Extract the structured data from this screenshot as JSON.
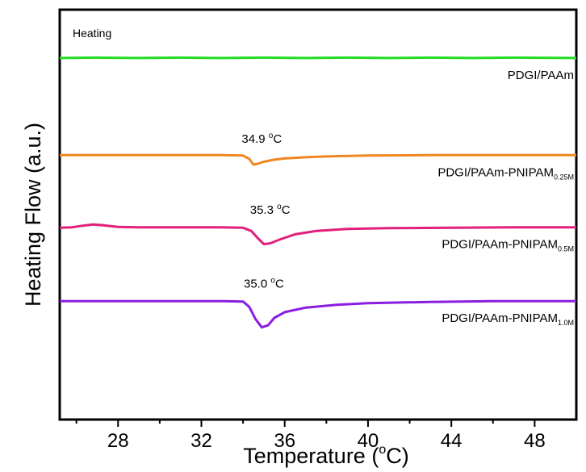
{
  "chart_data": {
    "type": "line",
    "annotation": "Heating",
    "xlabel": {
      "prefix": "Temperature (",
      "sup": "o",
      "suffix": "C)"
    },
    "ylabel": "Heating Flow (a.u.)",
    "xlim": [
      25.2,
      50.0
    ],
    "ylim": [
      0,
      1
    ],
    "grid": false,
    "yticks": false,
    "x_ticks_major": [
      28,
      32,
      36,
      40,
      44,
      48
    ],
    "x_ticks_minor": [
      26,
      30,
      34,
      38,
      42,
      46
    ],
    "x_tick_labels": [
      "28",
      "32",
      "36",
      "40",
      "44",
      "48"
    ],
    "series": [
      {
        "name": "PDGI/PAAm",
        "label": {
          "main": "PDGI/PAAm",
          "sub": ""
        },
        "color": "#22dd22",
        "points": [
          [
            25.2,
            0.882
          ],
          [
            27.0,
            0.883
          ],
          [
            29.0,
            0.882
          ],
          [
            31.0,
            0.883
          ],
          [
            33.0,
            0.882
          ],
          [
            35.0,
            0.883
          ],
          [
            37.0,
            0.882
          ],
          [
            39.0,
            0.883
          ],
          [
            41.0,
            0.882
          ],
          [
            43.0,
            0.883
          ],
          [
            45.0,
            0.882
          ],
          [
            47.0,
            0.883
          ],
          [
            50.0,
            0.882
          ]
        ],
        "peak_label": null
      },
      {
        "name": "PDGI/PAAm-PNIPAM0.25M",
        "label": {
          "main": "PDGI/PAAm-PNIPAM",
          "sub": "0.25M"
        },
        "color": "#ee8820",
        "points": [
          [
            25.2,
            0.645
          ],
          [
            28.0,
            0.645
          ],
          [
            31.0,
            0.645
          ],
          [
            33.0,
            0.645
          ],
          [
            34.0,
            0.644
          ],
          [
            34.3,
            0.636
          ],
          [
            34.5,
            0.622
          ],
          [
            34.7,
            0.624
          ],
          [
            35.0,
            0.629
          ],
          [
            35.5,
            0.634
          ],
          [
            36.0,
            0.637
          ],
          [
            37.0,
            0.64
          ],
          [
            38.0,
            0.642
          ],
          [
            40.0,
            0.644
          ],
          [
            43.0,
            0.645
          ],
          [
            46.0,
            0.645
          ],
          [
            50.0,
            0.645
          ]
        ],
        "peak_label": {
          "value": "34.9 ",
          "sup": "o",
          "unit": "C",
          "x": 34.9,
          "y": 0.675
        }
      },
      {
        "name": "PDGI/PAAm-PNIPAM0.5M",
        "label": {
          "main": "PDGI/PAAm-PNIPAM",
          "sub": "0.5M"
        },
        "color": "#e0207a",
        "points": [
          [
            25.2,
            0.468
          ],
          [
            25.8,
            0.469
          ],
          [
            26.3,
            0.473
          ],
          [
            26.8,
            0.476
          ],
          [
            27.3,
            0.474
          ],
          [
            28.0,
            0.47
          ],
          [
            29.0,
            0.469
          ],
          [
            31.0,
            0.469
          ],
          [
            33.0,
            0.469
          ],
          [
            34.0,
            0.468
          ],
          [
            34.4,
            0.46
          ],
          [
            34.7,
            0.443
          ],
          [
            35.0,
            0.428
          ],
          [
            35.3,
            0.43
          ],
          [
            35.8,
            0.44
          ],
          [
            36.5,
            0.452
          ],
          [
            37.5,
            0.46
          ],
          [
            39.0,
            0.465
          ],
          [
            41.0,
            0.467
          ],
          [
            44.0,
            0.468
          ],
          [
            47.0,
            0.469
          ],
          [
            50.0,
            0.469
          ]
        ],
        "peak_label": {
          "value": "35.3 ",
          "sup": "o",
          "unit": "C",
          "x": 35.3,
          "y": 0.502
        }
      },
      {
        "name": "PDGI/PAAm-PNIPAM1.0M",
        "label": {
          "main": "PDGI/PAAm-PNIPAM",
          "sub": "1.0M"
        },
        "color": "#8a1ee0",
        "points": [
          [
            25.2,
            0.289
          ],
          [
            28.0,
            0.289
          ],
          [
            31.0,
            0.289
          ],
          [
            33.0,
            0.289
          ],
          [
            34.0,
            0.288
          ],
          [
            34.3,
            0.275
          ],
          [
            34.6,
            0.245
          ],
          [
            34.9,
            0.225
          ],
          [
            35.2,
            0.23
          ],
          [
            35.5,
            0.248
          ],
          [
            36.0,
            0.262
          ],
          [
            37.0,
            0.273
          ],
          [
            38.5,
            0.28
          ],
          [
            40.0,
            0.284
          ],
          [
            43.0,
            0.287
          ],
          [
            46.0,
            0.289
          ],
          [
            50.0,
            0.289
          ]
        ],
        "peak_label": {
          "value": "35.0 ",
          "sup": "o",
          "unit": "C",
          "x": 35.0,
          "y": 0.322
        }
      }
    ]
  }
}
